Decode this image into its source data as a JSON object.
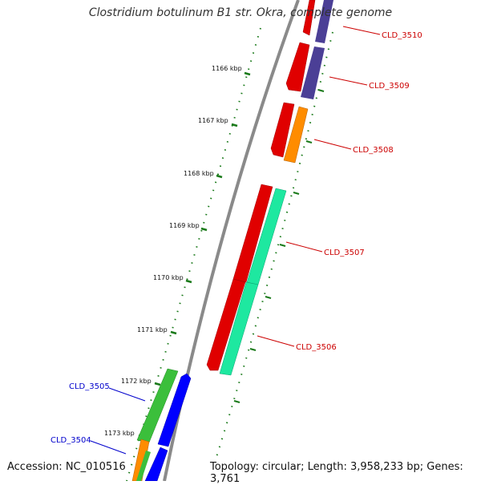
{
  "title": "Clostridium botulinum B1 str. Okra, complete genome",
  "footer": {
    "accession": "Accession: NC_010516",
    "summary": "Topology: circular; Length: 3,958,233 bp; Genes: 3,761"
  },
  "ticks": [
    {
      "label": "1166 kbp"
    },
    {
      "label": "1167 kbp"
    },
    {
      "label": "1168 kbp"
    },
    {
      "label": "1169 kbp"
    },
    {
      "label": "1170 kbp"
    },
    {
      "label": "1171 kbp"
    },
    {
      "label": "1172 kbp"
    },
    {
      "label": "1173 kbp"
    }
  ],
  "genes": [
    {
      "name": "CLD_3510",
      "color": "#cc0000"
    },
    {
      "name": "CLD_3509",
      "color": "#cc0000"
    },
    {
      "name": "CLD_3508",
      "color": "#cc0000"
    },
    {
      "name": "CLD_3507",
      "color": "#cc0000"
    },
    {
      "name": "CLD_3506",
      "color": "#cc0000"
    },
    {
      "name": "CLD_3505",
      "color": "#0000cc"
    },
    {
      "name": "CLD_3504",
      "color": "#0000cc"
    }
  ],
  "colors": {
    "backbone": "#888888",
    "tick": "#1a7a1a",
    "cds_forward": "#ff0000",
    "cds_reverse": "#0000ff",
    "purple": "#5a4fa0",
    "orange": "#ff8c00",
    "mint": "#1ee8a0",
    "green": "#3bbf3b"
  }
}
